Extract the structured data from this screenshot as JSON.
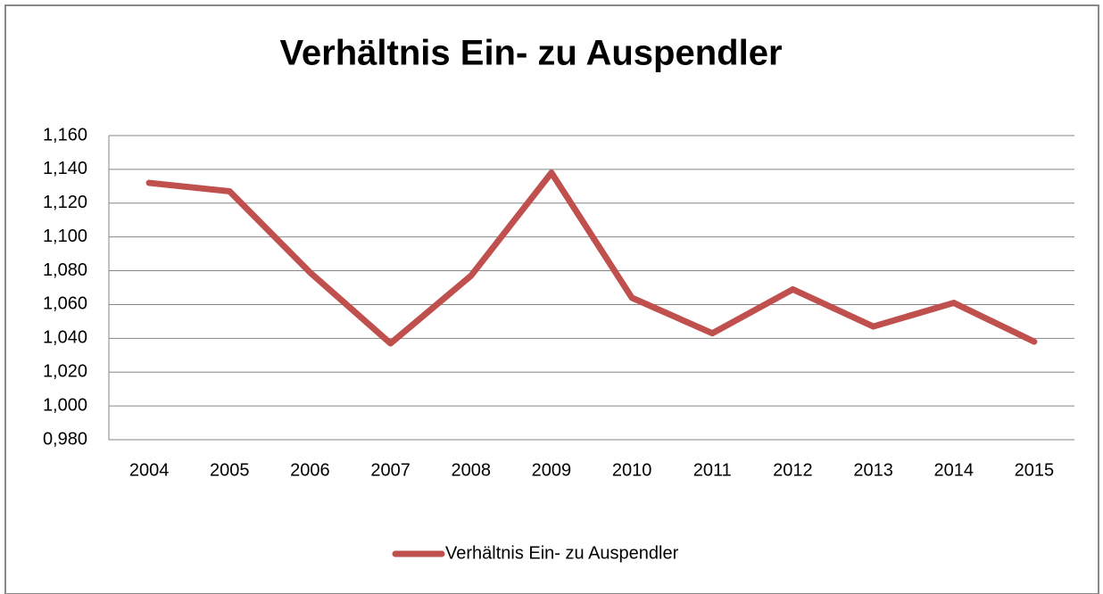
{
  "chart_data": {
    "type": "line",
    "title": "Verhältnis Ein- zu Auspendler",
    "categories": [
      "2004",
      "2005",
      "2006",
      "2007",
      "2008",
      "2009",
      "2010",
      "2011",
      "2012",
      "2013",
      "2014",
      "2015"
    ],
    "series": [
      {
        "name": "Verhältnis Ein- zu Auspendler",
        "color": "#c0504d",
        "values": [
          1.132,
          1.127,
          1.079,
          1.037,
          1.077,
          1.138,
          1.064,
          1.043,
          1.069,
          1.047,
          1.061,
          1.038
        ]
      }
    ],
    "ylim": [
      0.98,
      1.16
    ],
    "yticks": [
      {
        "value": 0.98,
        "label": "0,980"
      },
      {
        "value": 1.0,
        "label": "1,000"
      },
      {
        "value": 1.02,
        "label": "1,020"
      },
      {
        "value": 1.04,
        "label": "1,040"
      },
      {
        "value": 1.06,
        "label": "1,060"
      },
      {
        "value": 1.08,
        "label": "1,080"
      },
      {
        "value": 1.1,
        "label": "1,100"
      },
      {
        "value": 1.12,
        "label": "1,120"
      },
      {
        "value": 1.14,
        "label": "1,140"
      },
      {
        "value": 1.16,
        "label": "1,160"
      }
    ],
    "grid": true,
    "legend": "bottom"
  }
}
